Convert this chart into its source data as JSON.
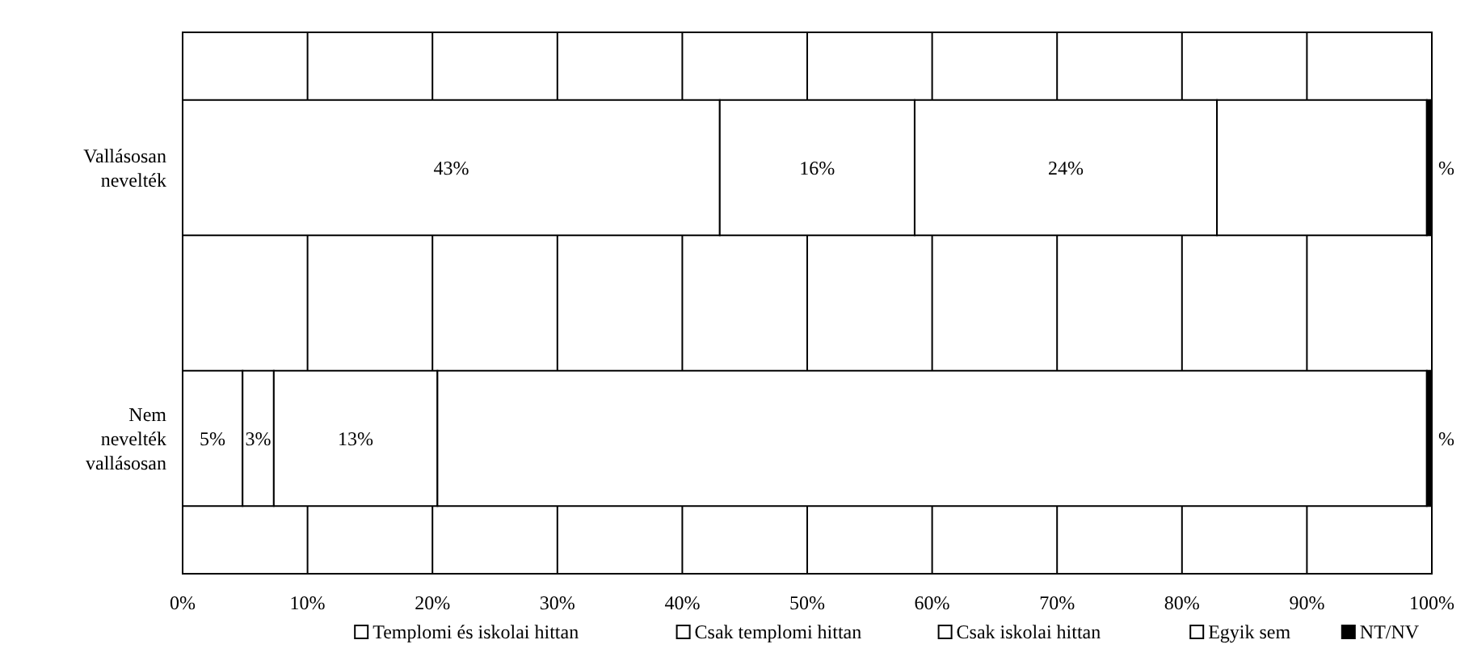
{
  "chart_data": {
    "type": "bar",
    "orientation": "horizontal",
    "stacked": true,
    "categories": [
      "Vallásosan nevelték",
      "Nem nevelték vallásosan"
    ],
    "series": [
      {
        "name": "Templomi és iskolai hittan",
        "color": "#ffffff",
        "values": [
          43,
          4.8
        ],
        "value_labels": [
          "43%",
          "5%"
        ]
      },
      {
        "name": "Csak templomi hittan",
        "color": "#ffffff",
        "values": [
          15.6,
          2.5
        ],
        "value_labels": [
          "16%",
          "3%"
        ]
      },
      {
        "name": "Csak iskolai hittan",
        "color": "#ffffff",
        "values": [
          24.2,
          13.1
        ],
        "value_labels": [
          "24%",
          "13%"
        ]
      },
      {
        "name": "Egyik sem",
        "color": "#ffffff",
        "values": [
          16.8,
          79.2
        ],
        "value_labels": [
          null,
          null
        ]
      },
      {
        "name": "NT/NV",
        "color": "#000000",
        "values": [
          0.4,
          0.4
        ],
        "value_labels": [
          "%",
          "%"
        ]
      }
    ],
    "xlim": [
      0,
      100
    ],
    "xticks": [
      {
        "value": 0,
        "label": "0%"
      },
      {
        "value": 10,
        "label": "10%"
      },
      {
        "value": 20,
        "label": "20%"
      },
      {
        "value": 30,
        "label": "30%"
      },
      {
        "value": 40,
        "label": "40%"
      },
      {
        "value": 50,
        "label": "50%"
      },
      {
        "value": 60,
        "label": "60%"
      },
      {
        "value": 70,
        "label": "70%"
      },
      {
        "value": 80,
        "label": "80%"
      },
      {
        "value": 90,
        "label": "90%"
      },
      {
        "value": 100,
        "label": "100%"
      }
    ],
    "grid": "x",
    "legend": "bottom"
  }
}
